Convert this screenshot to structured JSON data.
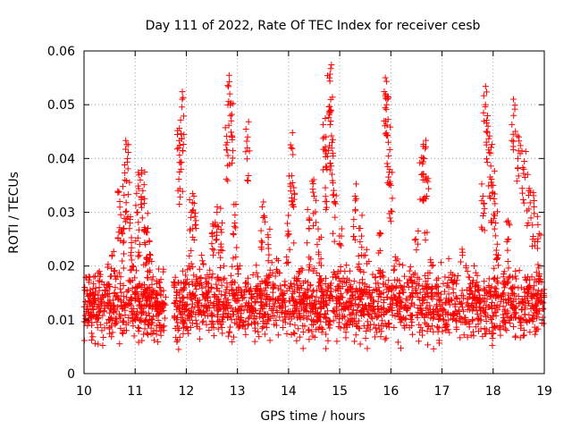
{
  "chart_data": {
    "type": "scatter",
    "title": "Day 111 of 2022, Rate Of TEC Index for receiver cesb",
    "xlabel": "GPS time / hours",
    "ylabel": "ROTI / TECUs",
    "xlim": [
      10,
      19
    ],
    "ylim": [
      0,
      0.06
    ],
    "x_ticks": [
      10,
      11,
      12,
      13,
      14,
      15,
      16,
      17,
      18,
      19
    ],
    "x_tick_labels": [
      "10",
      "11",
      "12",
      "13",
      "14",
      "15",
      "16",
      "17",
      "18",
      "19"
    ],
    "y_ticks": [
      0,
      0.01,
      0.02,
      0.03,
      0.04,
      0.05,
      0.06
    ],
    "y_tick_labels": [
      "0",
      "0.01",
      "0.02",
      "0.03",
      "0.04",
      "0.05",
      "0.06"
    ],
    "grid": true,
    "marker": "+",
    "color": "#ff0000",
    "series": [
      {
        "name": "ROTI",
        "points": [
          [
            10.05,
            0.012
          ],
          [
            10.1,
            0.017
          ],
          [
            10.15,
            0.009
          ],
          [
            10.2,
            0.014
          ],
          [
            10.25,
            0.011
          ],
          [
            10.3,
            0.019
          ],
          [
            10.35,
            0.008
          ],
          [
            10.4,
            0.013
          ],
          [
            10.45,
            0.016
          ],
          [
            10.5,
            0.01
          ],
          [
            10.55,
            0.022
          ],
          [
            10.6,
            0.012
          ],
          [
            10.65,
            0.018
          ],
          [
            10.7,
            0.032
          ],
          [
            10.75,
            0.026
          ],
          [
            10.8,
            0.036
          ],
          [
            10.85,
            0.04
          ],
          [
            10.9,
            0.028
          ],
          [
            10.95,
            0.02
          ],
          [
            11.0,
            0.015
          ],
          [
            11.05,
            0.03
          ],
          [
            11.1,
            0.036
          ],
          [
            11.15,
            0.034
          ],
          [
            11.2,
            0.024
          ],
          [
            11.25,
            0.027
          ],
          [
            11.3,
            0.022
          ],
          [
            11.35,
            0.018
          ],
          [
            11.4,
            0.014
          ],
          [
            11.45,
            0.011
          ],
          [
            11.5,
            0.009
          ],
          [
            11.85,
            0.042
          ],
          [
            11.9,
            0.038
          ],
          [
            11.92,
            0.051
          ],
          [
            11.95,
            0.016
          ],
          [
            12.0,
            0.012
          ],
          [
            12.05,
            0.02
          ],
          [
            12.1,
            0.03
          ],
          [
            12.15,
            0.033
          ],
          [
            12.2,
            0.018
          ],
          [
            12.3,
            0.022
          ],
          [
            12.4,
            0.015
          ],
          [
            12.5,
            0.026
          ],
          [
            12.6,
            0.03
          ],
          [
            12.7,
            0.028
          ],
          [
            12.8,
            0.043
          ],
          [
            12.85,
            0.052
          ],
          [
            12.88,
            0.047
          ],
          [
            12.95,
            0.028
          ],
          [
            13.0,
            0.02
          ],
          [
            13.1,
            0.014
          ],
          [
            13.2,
            0.044
          ],
          [
            13.3,
            0.012
          ],
          [
            13.4,
            0.018
          ],
          [
            13.5,
            0.029
          ],
          [
            13.6,
            0.024
          ],
          [
            13.7,
            0.016
          ],
          [
            13.8,
            0.021
          ],
          [
            13.9,
            0.014
          ],
          [
            14.0,
            0.026
          ],
          [
            14.05,
            0.042
          ],
          [
            14.1,
            0.031
          ],
          [
            14.2,
            0.019
          ],
          [
            14.3,
            0.015
          ],
          [
            14.4,
            0.027
          ],
          [
            14.5,
            0.033
          ],
          [
            14.6,
            0.025
          ],
          [
            14.7,
            0.044
          ],
          [
            14.75,
            0.038
          ],
          [
            14.8,
            0.055
          ],
          [
            14.82,
            0.049
          ],
          [
            14.85,
            0.043
          ],
          [
            14.9,
            0.032
          ],
          [
            15.0,
            0.024
          ],
          [
            15.1,
            0.019
          ],
          [
            15.2,
            0.016
          ],
          [
            15.3,
            0.033
          ],
          [
            15.4,
            0.027
          ],
          [
            15.5,
            0.022
          ],
          [
            15.6,
            0.014
          ],
          [
            15.7,
            0.018
          ],
          [
            15.8,
            0.026
          ],
          [
            15.9,
            0.052
          ],
          [
            15.92,
            0.05
          ],
          [
            15.95,
            0.043
          ],
          [
            16.0,
            0.035
          ],
          [
            16.1,
            0.021
          ],
          [
            16.2,
            0.016
          ],
          [
            16.3,
            0.012
          ],
          [
            16.4,
            0.018
          ],
          [
            16.5,
            0.023
          ],
          [
            16.6,
            0.037
          ],
          [
            16.65,
            0.04
          ],
          [
            16.7,
            0.033
          ],
          [
            16.8,
            0.02
          ],
          [
            16.9,
            0.015
          ],
          [
            17.0,
            0.012
          ],
          [
            17.1,
            0.009
          ],
          [
            17.2,
            0.017
          ],
          [
            17.3,
            0.011
          ],
          [
            17.4,
            0.022
          ],
          [
            17.5,
            0.019
          ],
          [
            17.6,
            0.014
          ],
          [
            17.7,
            0.016
          ],
          [
            17.8,
            0.033
          ],
          [
            17.85,
            0.05
          ],
          [
            17.9,
            0.046
          ],
          [
            17.95,
            0.041
          ],
          [
            18.0,
            0.035
          ],
          [
            18.05,
            0.028
          ],
          [
            18.1,
            0.022
          ],
          [
            18.2,
            0.018
          ],
          [
            18.3,
            0.025
          ],
          [
            18.4,
            0.048
          ],
          [
            18.5,
            0.044
          ],
          [
            18.6,
            0.038
          ],
          [
            18.7,
            0.034
          ],
          [
            18.8,
            0.031
          ],
          [
            18.9,
            0.026
          ],
          [
            18.95,
            0.017
          ],
          [
            18.98,
            0.012
          ]
        ]
      }
    ],
    "dense_band": {
      "segments": [
        [
          10.0,
          11.6
        ],
        [
          11.75,
          19.0
        ]
      ],
      "low": 0.004,
      "high": 0.021,
      "center": 0.012
    }
  }
}
